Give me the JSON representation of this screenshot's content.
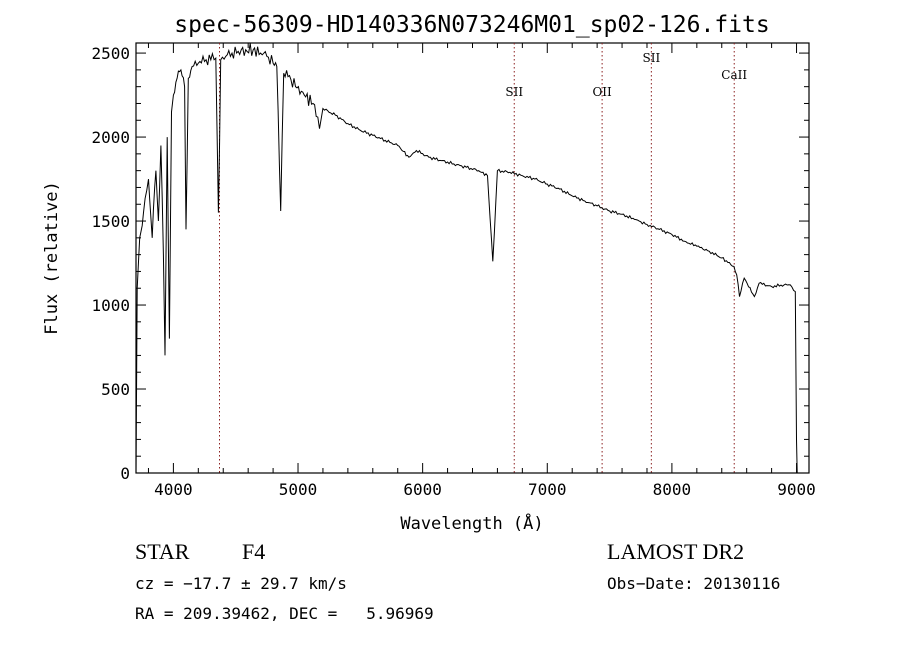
{
  "chart_data": {
    "type": "line",
    "title": "spec-56309-HD140336N073246M01_sp02-126.fits",
    "xlabel": "Wavelength (Å)",
    "ylabel": "Flux (relative)",
    "xlim": [
      3700,
      9100
    ],
    "ylim": [
      0,
      2560
    ],
    "xticks": [
      4000,
      5000,
      6000,
      7000,
      8000,
      9000
    ],
    "yticks": [
      0,
      500,
      1000,
      1500,
      2000,
      2500
    ],
    "grid": false,
    "series": [
      {
        "x": [
          3700,
          3710,
          3730,
          3760,
          3800,
          3830,
          3860,
          3880,
          3900,
          3920,
          3933,
          3950,
          3968,
          3985,
          4000,
          4030,
          4060,
          4090,
          4101,
          4120,
          4150,
          4200,
          4250,
          4300,
          4340,
          4361,
          4380,
          4420,
          4470,
          4520,
          4580,
          4640,
          4700,
          4750,
          4800,
          4830,
          4861,
          4885,
          4920,
          4980,
          5050,
          5120,
          5172,
          5200,
          5300,
          5400,
          5500,
          5600,
          5700,
          5800,
          5890,
          5950,
          6050,
          6150,
          6250,
          6350,
          6450,
          6520,
          6563,
          6600,
          6700,
          6800,
          6900,
          7000,
          7100,
          7200,
          7300,
          7400,
          7500,
          7600,
          7700,
          7800,
          7900,
          8000,
          8100,
          8200,
          8300,
          8400,
          8498,
          8520,
          8542,
          8580,
          8662,
          8700,
          8800,
          8900,
          8950,
          8990,
          9000,
          9005
        ],
        "y": [
          0,
          1100,
          1400,
          1550,
          1750,
          1400,
          1800,
          1500,
          1950,
          1300,
          700,
          2000,
          800,
          2150,
          2250,
          2350,
          2400,
          2300,
          1450,
          2350,
          2420,
          2440,
          2450,
          2460,
          2470,
          1550,
          2460,
          2480,
          2500,
          2510,
          2520,
          2520,
          2500,
          2480,
          2440,
          2420,
          1560,
          2380,
          2360,
          2300,
          2250,
          2200,
          2050,
          2170,
          2130,
          2080,
          2040,
          2010,
          1980,
          1950,
          1880,
          1920,
          1880,
          1860,
          1840,
          1820,
          1800,
          1770,
          1260,
          1800,
          1790,
          1770,
          1750,
          1720,
          1690,
          1650,
          1620,
          1590,
          1560,
          1540,
          1510,
          1480,
          1450,
          1420,
          1380,
          1350,
          1320,
          1280,
          1230,
          1180,
          1050,
          1160,
          1050,
          1130,
          1110,
          1120,
          1120,
          1080,
          200,
          0
        ]
      }
    ],
    "lines": [
      {
        "x": 4370
      },
      {
        "x": 6735,
        "label": "SII"
      },
      {
        "x": 7440,
        "label": "OII"
      },
      {
        "x": 7835,
        "label": "SII"
      },
      {
        "x": 8500,
        "label": "CaII"
      }
    ]
  },
  "info": {
    "object_class": "STAR",
    "subclass": "F4",
    "survey": "LAMOST DR2",
    "cz": "cz = −17.7 ± 29.7 km/s",
    "obs_date": "Obs−Date: 20130116",
    "coords": "RA = 209.39462, DEC =   5.96969"
  },
  "colors": {
    "line": "#000000",
    "marker_line": "#8b2020",
    "axes": "#000000"
  }
}
